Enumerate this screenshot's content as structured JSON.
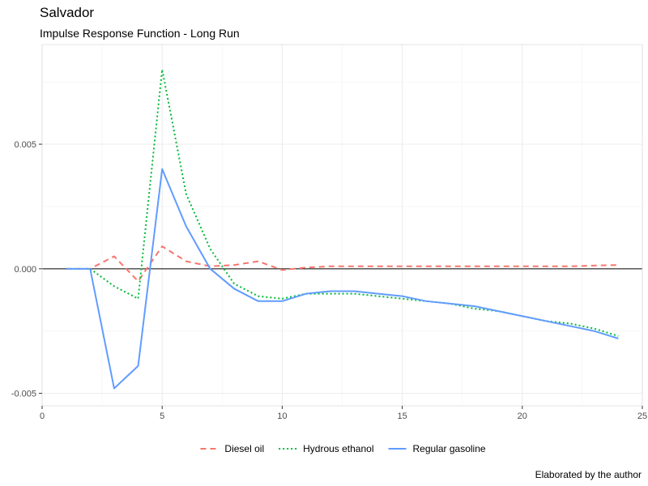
{
  "chart_data": {
    "type": "line",
    "title": "Salvador",
    "subtitle": "Impulse Response Function - Long Run",
    "caption": "Elaborated by the author",
    "xlim": [
      0,
      25
    ],
    "ylim": [
      -0.0055,
      0.009
    ],
    "x_ticks": [
      0,
      5,
      10,
      15,
      20,
      25
    ],
    "y_ticks": [
      -0.005,
      0.0,
      0.005
    ],
    "y_tick_labels": [
      "-0.005",
      "0.000",
      "0.005"
    ],
    "zero_line": true,
    "grid": true,
    "legend_position": "bottom",
    "x": [
      1,
      2,
      3,
      4,
      5,
      6,
      7,
      8,
      9,
      10,
      11,
      12,
      13,
      14,
      15,
      16,
      17,
      18,
      19,
      20,
      21,
      22,
      23,
      24
    ],
    "series": [
      {
        "name": "Diesel oil",
        "color": "#F8766D",
        "dash": "dashed",
        "values": [
          0.0,
          0.0,
          0.0005,
          -0.0005,
          0.0009,
          0.0003,
          0.0001,
          0.00015,
          0.0003,
          -5e-05,
          5e-05,
          0.0001,
          0.0001,
          0.0001,
          0.0001,
          0.0001,
          0.0001,
          0.0001,
          0.0001,
          0.0001,
          0.0001,
          0.0001,
          0.00013,
          0.00015
        ]
      },
      {
        "name": "Hydrous ethanol",
        "color": "#00BA38",
        "dash": "dotted",
        "values": [
          0.0,
          0.0,
          -0.0007,
          -0.0012,
          0.008,
          0.003,
          0.0008,
          -0.0006,
          -0.0011,
          -0.0012,
          -0.001,
          -0.001,
          -0.001,
          -0.0011,
          -0.0012,
          -0.0013,
          -0.0014,
          -0.0016,
          -0.0017,
          -0.0019,
          -0.0021,
          -0.0022,
          -0.0024,
          -0.0027
        ]
      },
      {
        "name": "Regular gasoline",
        "color": "#619CFF",
        "dash": "solid",
        "values": [
          0.0,
          0.0,
          -0.0048,
          -0.0039,
          0.004,
          0.0017,
          0.0,
          -0.0008,
          -0.0013,
          -0.0013,
          -0.001,
          -0.0009,
          -0.0009,
          -0.001,
          -0.0011,
          -0.0013,
          -0.0014,
          -0.0015,
          -0.0017,
          -0.0019,
          -0.0021,
          -0.0023,
          -0.0025,
          -0.0028
        ]
      }
    ]
  }
}
